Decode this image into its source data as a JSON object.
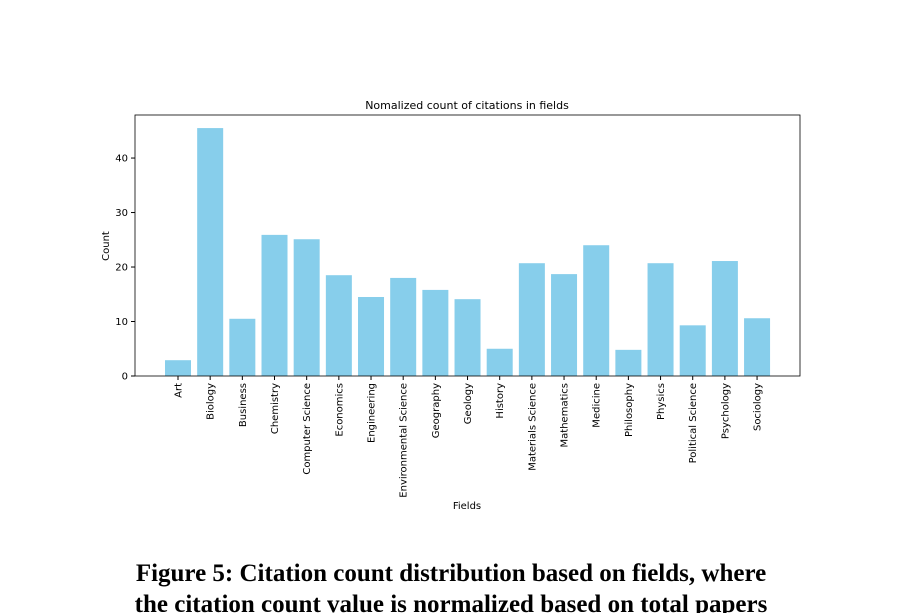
{
  "chart_data": {
    "type": "bar",
    "title": "Nomalized count of citations in fields",
    "x_label": "Fields",
    "y_label": "Count",
    "categories": [
      "Art",
      "Biology",
      "Business",
      "Chemistry",
      "Computer Science",
      "Economics",
      "Engineering",
      "Environmental Science",
      "Geography",
      "Geology",
      "History",
      "Materials Science",
      "Mathematics",
      "Medicine",
      "Philosophy",
      "Physics",
      "Political Science",
      "Psychology",
      "Sociology"
    ],
    "values": [
      2.9,
      45.5,
      10.5,
      25.9,
      25.1,
      18.5,
      14.5,
      18.0,
      15.8,
      14.1,
      5.0,
      20.7,
      18.7,
      24.0,
      4.8,
      20.7,
      9.3,
      21.1,
      10.6
    ],
    "color": "#87ceeb",
    "ylim": [
      0,
      47.9
    ],
    "yticks": [
      0,
      10,
      20,
      30,
      40
    ],
    "grid": false
  },
  "caption": {
    "lines": [
      "Figure 5: Citation count distribution based on fields, where",
      "the citation count value is normalized based on total papers"
    ]
  }
}
